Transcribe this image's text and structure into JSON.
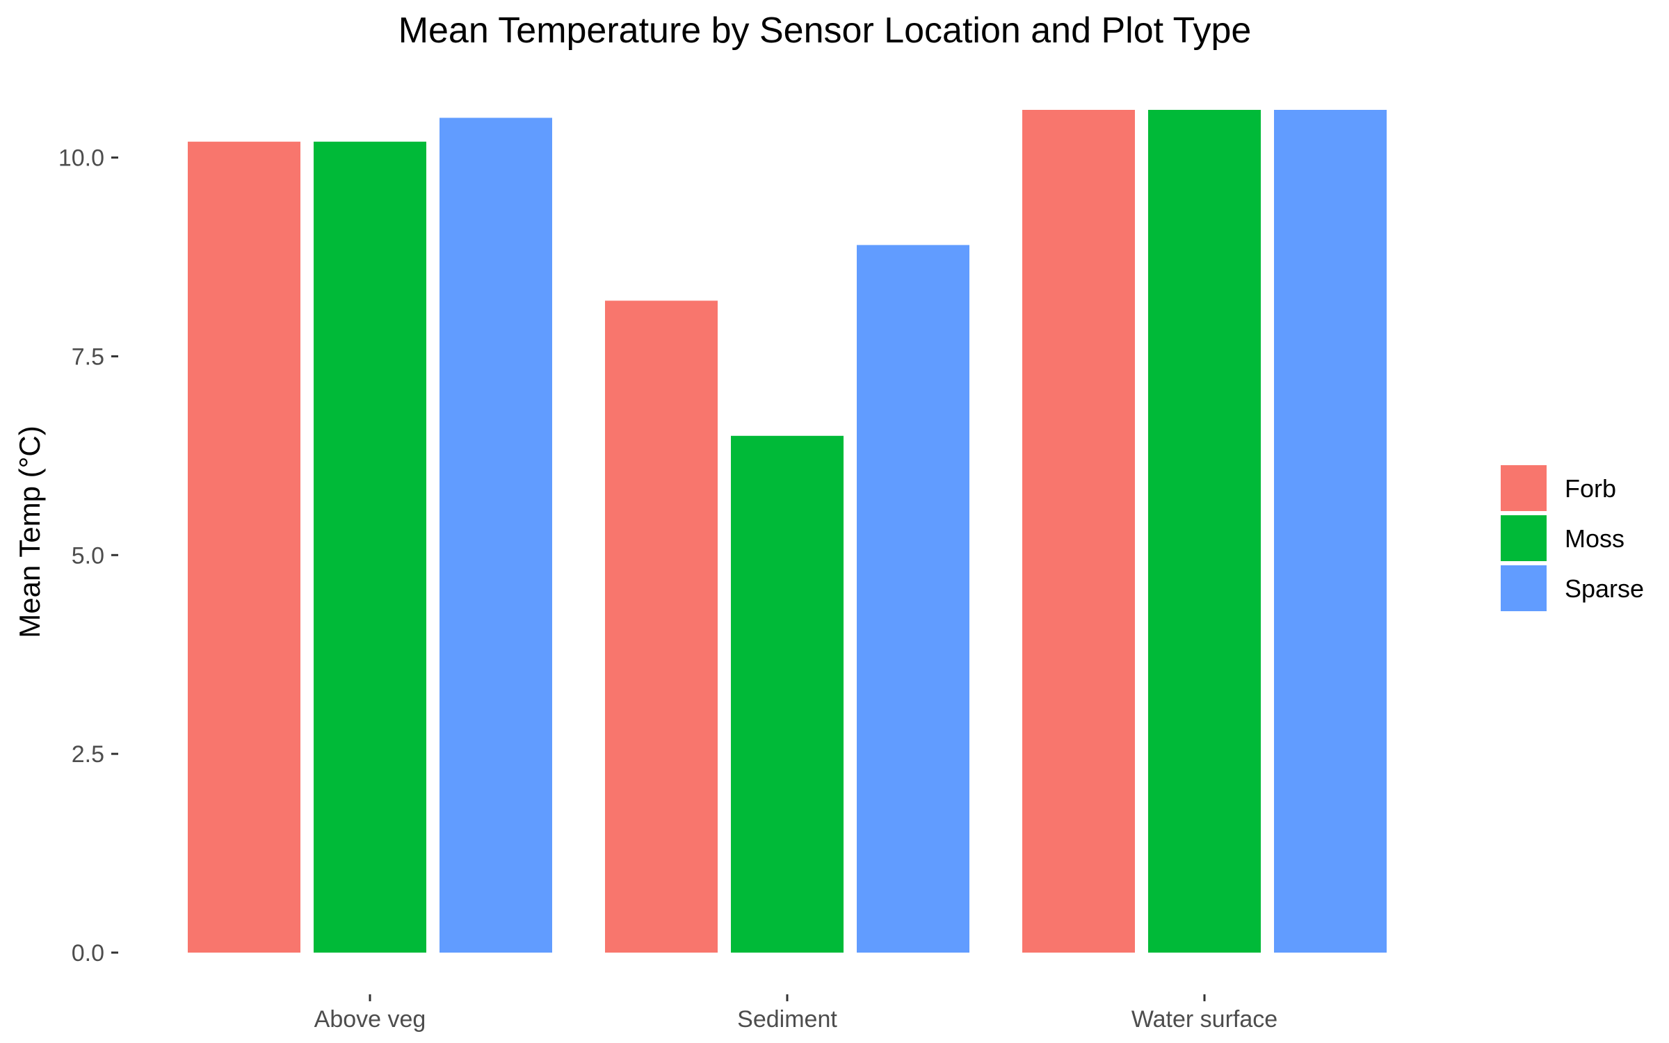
{
  "chart_data": {
    "type": "bar",
    "title": "Mean Temperature by Sensor Location and Plot Type",
    "xlabel": "",
    "ylabel": "Mean Temp (°C)",
    "categories": [
      "Above veg",
      "Sediment",
      "Water surface"
    ],
    "series": [
      {
        "name": "Forb",
        "color": "#F8766D",
        "values": [
          10.2,
          8.2,
          10.6
        ]
      },
      {
        "name": "Moss",
        "color": "#00BA38",
        "values": [
          10.2,
          6.5,
          10.6
        ]
      },
      {
        "name": "Sparse",
        "color": "#619CFF",
        "values": [
          10.5,
          8.9,
          10.6
        ]
      }
    ],
    "ylim": [
      0,
      10.6
    ],
    "yticks": [
      0,
      2.5,
      5,
      7.5,
      10
    ],
    "ytick_labels": [
      "0.0",
      "2.5",
      "5.0",
      "7.5",
      "10.0"
    ],
    "grid": false,
    "legend_position": "right"
  }
}
